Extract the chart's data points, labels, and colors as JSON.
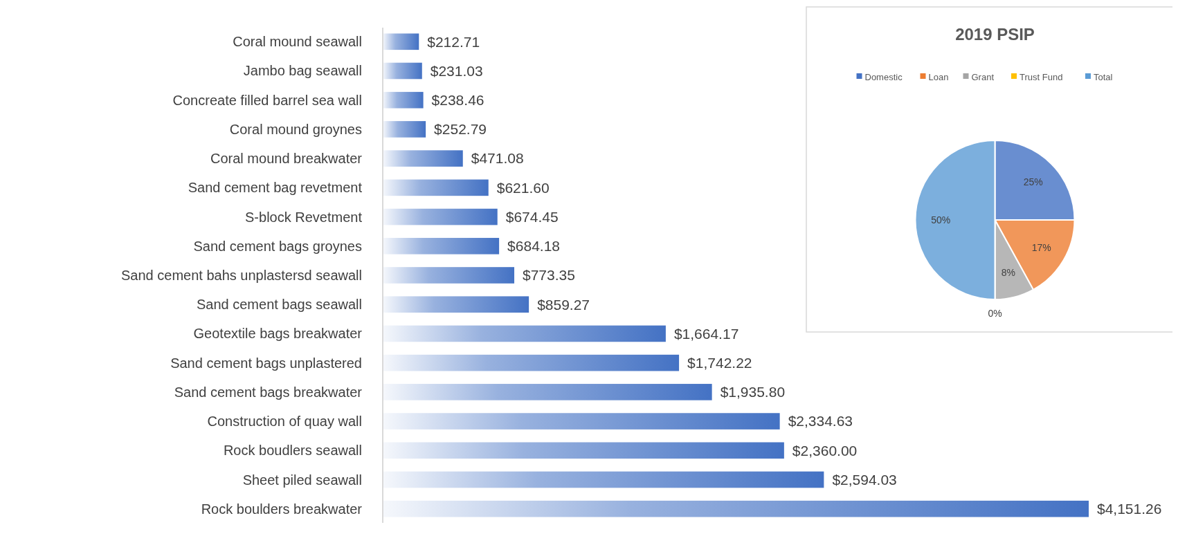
{
  "chart_data": [
    {
      "type": "bar",
      "orientation": "horizontal",
      "color": "#4472c4",
      "categories": [
        "Coral mound seawall",
        "Jambo bag seawall",
        "Concreate filled barrel sea wall",
        "Coral mound groynes",
        "Coral mound breakwater",
        "Sand cement bag revetment",
        "S-block Revetment",
        "Sand cement bags groynes",
        "Sand cement bahs unplastersd seawall",
        "Sand cement bags seawall",
        "Geotextile bags breakwater",
        "Sand cement bags unplastered",
        "Sand cement bags breakwater",
        "Construction of quay wall",
        "Rock boudlers seawall",
        "Sheet piled seawall",
        "Rock boulders breakwater"
      ],
      "values": [
        212.71,
        231.03,
        238.46,
        252.79,
        471.08,
        621.6,
        674.45,
        684.18,
        773.35,
        859.27,
        1664.17,
        1742.22,
        1935.8,
        2334.63,
        2360.0,
        2594.03,
        4151.26
      ],
      "value_labels": [
        "$212.71",
        "$231.03",
        "$238.46",
        "$252.79",
        "$471.08",
        "$621.60",
        "$674.45",
        "$684.18",
        "$773.35",
        "$859.27",
        "$1,664.17",
        "$1,742.22",
        "$1,935.80",
        "$2,334.63",
        "$2,360.00",
        "$2,594.03",
        "$4,151.26"
      ]
    },
    {
      "type": "pie",
      "title": "2019 PSIP",
      "legend": "top",
      "categories": [
        "Domestic",
        "Loan",
        "Grant",
        "Trust Fund",
        "Total"
      ],
      "values": [
        25,
        17,
        8,
        0,
        50
      ],
      "colors": [
        "#4472c4",
        "#ed7d31",
        "#a5a5a5",
        "#ffc000",
        "#5b9bd5"
      ],
      "value_labels": [
        "25%",
        "17%",
        "8%",
        "0%",
        "50%"
      ]
    }
  ]
}
